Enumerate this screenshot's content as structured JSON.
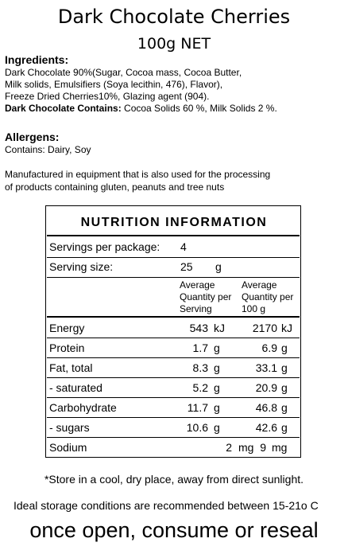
{
  "product": {
    "title": "Dark Chocolate Cherries",
    "net": "100g NET"
  },
  "ingredients": {
    "heading": "Ingredients:",
    "lines": [
      "Dark Chocolate 90%(Sugar, Cocoa mass, Cocoa Butter,",
      "Milk solids, Emulsifiers (Soya lecithin, 476), Flavor),",
      "Freeze Dried Cherries10%, Glazing agent (904)."
    ],
    "contains_label": "Dark Chocolate Contains:",
    "contains_text": " Cocoa Solids 60 %, Milk Solids 2 %."
  },
  "allergens": {
    "heading": "Allergens:",
    "text": "Contains: Dairy, Soy"
  },
  "manufacture": {
    "lines": [
      "Manufactured in equipment that is also used for the processing",
      "of products containing gluten, peanuts and tree nuts"
    ]
  },
  "nutrition": {
    "title": "NUTRITION INFORMATION",
    "servings_label": "Servings per package:",
    "servings_value": "4",
    "serving_size_label": "Serving size:",
    "serving_size_value": "25",
    "serving_size_unit": "g",
    "col1_header": [
      "Average",
      "Quantity per",
      "Serving"
    ],
    "col2_header": [
      "Average",
      "Quantity per",
      "100 g"
    ],
    "rows": [
      {
        "name": "Energy",
        "per_serving": "543",
        "serving_unit": "kJ",
        "per_100g": "2170",
        "unit_100g": "kJ"
      },
      {
        "name": "Protein",
        "per_serving": "1.7",
        "serving_unit": "g",
        "per_100g": "6.9",
        "unit_100g": "g"
      },
      {
        "name": "Fat, total",
        "per_serving": "8.3",
        "serving_unit": "g",
        "per_100g": "33.1",
        "unit_100g": "g"
      },
      {
        "name": "- saturated",
        "per_serving": "5.2",
        "serving_unit": "g",
        "per_100g": "20.9",
        "unit_100g": "g"
      },
      {
        "name": "Carbohydrate",
        "per_serving": "11.7",
        "serving_unit": "g",
        "per_100g": "46.8",
        "unit_100g": "g"
      },
      {
        "name": "- sugars",
        "per_serving": "10.6",
        "serving_unit": "g",
        "per_100g": "42.6",
        "unit_100g": "g"
      },
      {
        "name": "Sodium",
        "per_serving": "2",
        "serving_unit": "mg",
        "per_100g": "9",
        "unit_100g": "mg"
      }
    ]
  },
  "storage": {
    "note": "*Store in a cool, dry place, away from direct sunlight.",
    "ideal": "Ideal storage conditions are recommended between 15-21o C",
    "once_open": "once open, consume or reseal"
  }
}
